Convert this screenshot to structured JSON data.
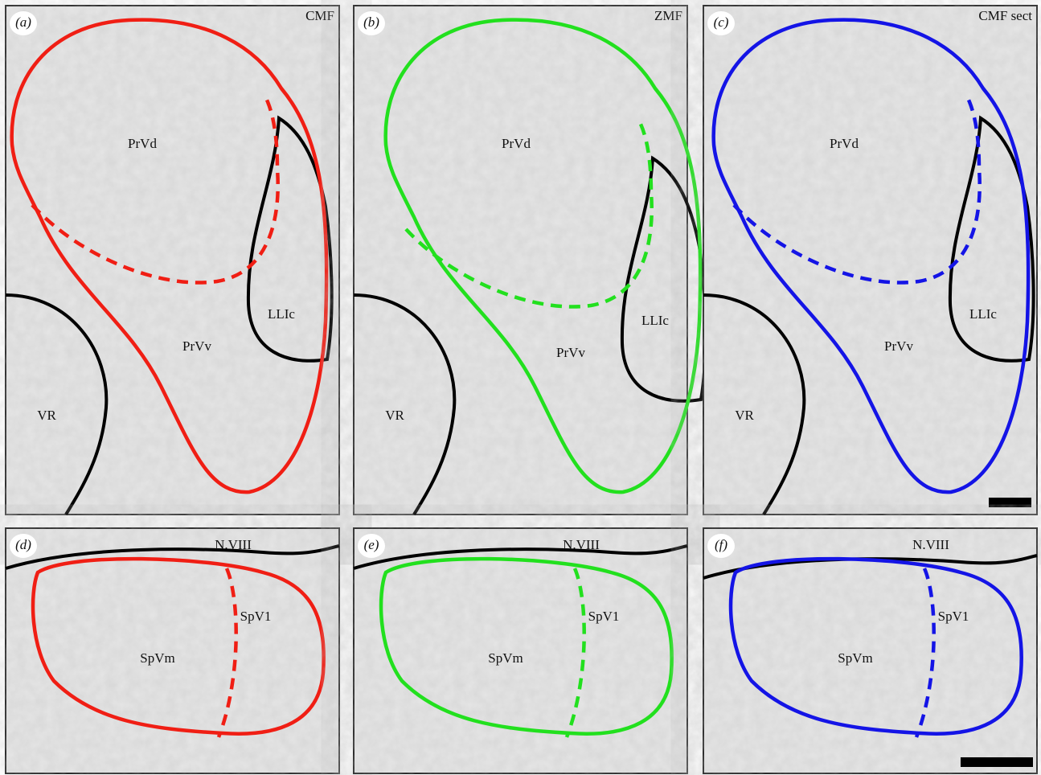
{
  "panels": [
    {
      "letter": "(a)",
      "corner_label": "CMF",
      "regions": [
        "PrVd",
        "PrVv",
        "LLIc",
        "VR"
      ]
    },
    {
      "letter": "(b)",
      "corner_label": "ZMF",
      "regions": [
        "PrVd",
        "PrVv",
        "LLIc",
        "VR"
      ]
    },
    {
      "letter": "(c)",
      "corner_label": "CMF sect",
      "regions": [
        "PrVd",
        "PrVv",
        "LLIc",
        "VR"
      ]
    },
    {
      "letter": "(d)",
      "corner_label": "N.VIII",
      "regions": [
        "SpVm",
        "SpV1"
      ]
    },
    {
      "letter": "(e)",
      "corner_label": "N.VIII",
      "regions": [
        "SpVm",
        "SpV1"
      ]
    },
    {
      "letter": "(f)",
      "corner_label": "N.VIII",
      "regions": [
        "SpVm",
        "SpV1"
      ]
    }
  ]
}
